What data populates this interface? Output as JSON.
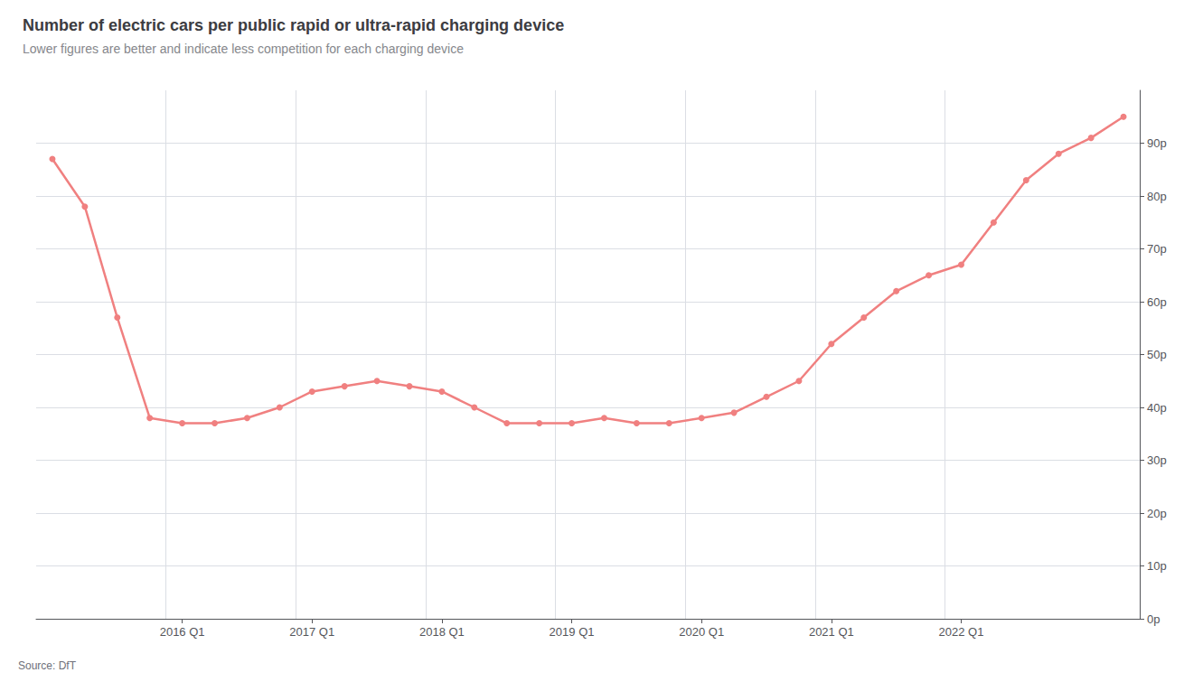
{
  "chart_data": {
    "type": "line",
    "title": "Number of electric cars per public rapid or ultra-rapid charging device",
    "subtitle": "Lower figures are better and indicate less competition for each charging device",
    "annotations": [
      "Source: DfT"
    ],
    "categories": [
      null,
      null,
      null,
      null,
      "2016 Q1",
      null,
      null,
      null,
      "2017 Q1",
      null,
      null,
      null,
      "2018 Q1",
      null,
      null,
      null,
      "2019 Q1",
      null,
      null,
      null,
      "2020 Q1",
      null,
      null,
      null,
      "2021 Q1",
      null,
      null,
      null,
      "2022 Q1",
      null,
      null,
      null,
      null,
      null
    ],
    "values": [
      87,
      78,
      57,
      38,
      37,
      37,
      38,
      40,
      43,
      44,
      45,
      44,
      43,
      40,
      37,
      37,
      37,
      38,
      37,
      37,
      38,
      39,
      42,
      45,
      52,
      57,
      62,
      65,
      67,
      75,
      83,
      88,
      91,
      95
    ],
    "color": "#f08080",
    "marker": "circle",
    "ylim": [
      0,
      100
    ],
    "yticks": [
      {
        "value": 0,
        "label": "0p"
      },
      {
        "value": 10,
        "label": "10p"
      },
      {
        "value": 20,
        "label": "20p"
      },
      {
        "value": 30,
        "label": "30p"
      },
      {
        "value": 40,
        "label": "40p"
      },
      {
        "value": 50,
        "label": "50p"
      },
      {
        "value": 60,
        "label": "60p"
      },
      {
        "value": 70,
        "label": "70p"
      },
      {
        "value": 80,
        "label": "80p"
      },
      {
        "value": 90,
        "label": "90p"
      }
    ],
    "grid": true
  }
}
